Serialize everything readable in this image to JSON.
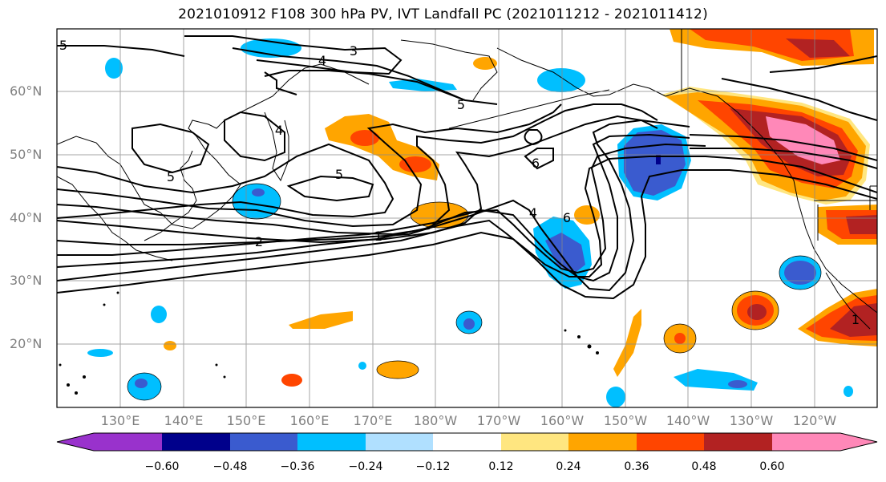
{
  "title": "2021010912 F108 300 hPa PV, IVT Landfall PC (2021011212 - 2021011412)",
  "lat_labels": [
    "60°N",
    "50°N",
    "40°N",
    "30°N",
    "20°N"
  ],
  "lon_labels": [
    "130°E",
    "140°E",
    "150°E",
    "160°E",
    "170°E",
    "180°W",
    "170°W",
    "160°W",
    "150°W",
    "140°W",
    "130°W",
    "120°W"
  ],
  "colorbar": {
    "ticks": [
      "−0.60",
      "−0.48",
      "−0.36",
      "−0.24",
      "−0.12",
      "0.12",
      "0.24",
      "0.36",
      "0.48",
      "0.60"
    ],
    "colors": [
      "#9932cc",
      "#00008b",
      "#3a5bcf",
      "#00bfff",
      "#b0e0ff",
      "#ffffff",
      "#ffe680",
      "#ffa500",
      "#ff4500",
      "#b22222",
      "#ff88b8"
    ]
  },
  "contour_labels": [
    "5",
    "3",
    "4",
    "5",
    "4",
    "5",
    "5",
    "6",
    "4",
    "6",
    "2",
    "1",
    "1"
  ],
  "map": {
    "extent": {
      "lon_min": 120,
      "lon_max": 250,
      "lat_min": 10,
      "lat_max": 70
    },
    "gridlines": true
  }
}
